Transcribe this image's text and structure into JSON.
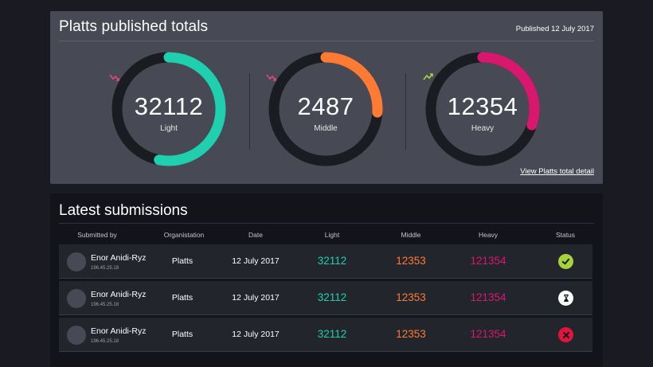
{
  "top_panel": {
    "title": "Platts published totals",
    "published": "Published 12 July 2017",
    "detail_link": "View Platts total detail",
    "gauges": [
      {
        "value": "32112",
        "label": "Light",
        "color": "#1fcfae",
        "fraction": 0.53,
        "trend": "down",
        "trend_color": "#e0497c"
      },
      {
        "value": "2487",
        "label": "Middle",
        "color": "#ff7a33",
        "fraction": 0.26,
        "trend": "down",
        "trend_color": "#e0497c"
      },
      {
        "value": "12354",
        "label": "Heavy",
        "color": "#d8186f",
        "fraction": 0.3,
        "trend": "up",
        "trend_color": "#a7d43a"
      }
    ]
  },
  "submissions": {
    "title": "Latest submissions",
    "headers": {
      "submitted_by": "Submitted by",
      "organisation": "Organistation",
      "date": "Date",
      "light": "Light",
      "middle": "Middle",
      "heavy": "Heavy",
      "status": "Status"
    },
    "rows": [
      {
        "name": "Enor Anidi-Ryz",
        "ip": "196.45.25.18",
        "org": "Platts",
        "date": "12 July 2017",
        "light": "32112",
        "middle": "12353",
        "heavy": "121354",
        "status": "approved"
      },
      {
        "name": "Enor Anidi-Ryz",
        "ip": "196.45.25.18",
        "org": "Platts",
        "date": "12 July 2017",
        "light": "32112",
        "middle": "12353",
        "heavy": "121354",
        "status": "pending"
      },
      {
        "name": "Enor Anidi-Ryz",
        "ip": "196.45.25.18",
        "org": "Platts",
        "date": "12 July 2017",
        "light": "32112",
        "middle": "12353",
        "heavy": "121354",
        "status": "rejected"
      }
    ]
  },
  "colors": {
    "light": "#1fcfae",
    "middle": "#ff7a33",
    "heavy": "#d8186f",
    "approved": "#a7d43a",
    "pending": "#ffffff",
    "rejected": "#e2143c"
  },
  "icons": {
    "approved": "check-circle-icon",
    "pending": "hourglass-icon",
    "rejected": "close-circle-icon"
  }
}
